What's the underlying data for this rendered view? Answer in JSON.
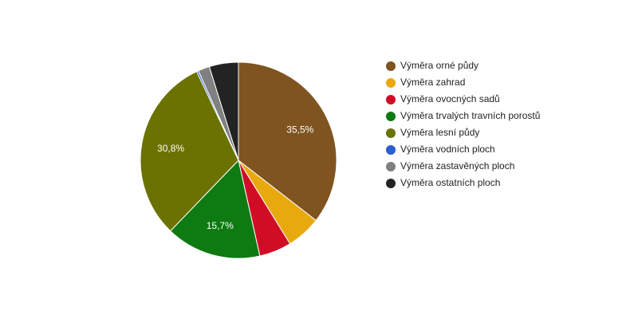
{
  "chart_data": {
    "type": "pie",
    "categories": [
      "Výměra orné půdy",
      "Výměra zahrad",
      "Výměra ovocných sadů",
      "Výměra trvalých travních porostů",
      "Výměra lesní půdy",
      "Výměra vodních ploch",
      "Výměra zastavěných ploch",
      "Výměra ostatních ploch"
    ],
    "values": [
      35.5,
      5.7,
      5.3,
      15.7,
      30.8,
      0.3,
      1.9,
      4.8
    ],
    "value_labels": [
      "35,5%",
      null,
      null,
      "15,7%",
      "30,8%",
      null,
      null,
      null
    ],
    "colors": [
      "#7f5420",
      "#e8a90e",
      "#d10d25",
      "#0d7a12",
      "#6b7200",
      "#2b5fd1",
      "#808080",
      "#232323"
    ],
    "legend": "right"
  }
}
